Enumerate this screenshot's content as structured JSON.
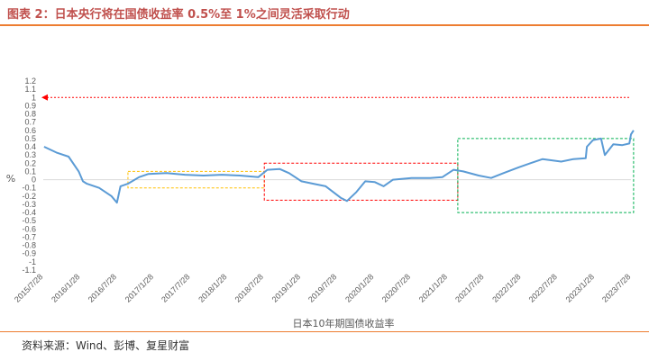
{
  "header": {
    "title": "图表 2：日本央行将在国债收益率 0.5%至 1%之间灵活采取行动"
  },
  "footer": {
    "source": "资料来源：Wind、彭博、复星财富"
  },
  "colors": {
    "accent": "#ed7d31",
    "title": "#c0504d",
    "series": "#5b9bd5",
    "box_yellow": "#ffc000",
    "box_red": "#ff0000",
    "box_green": "#00b050",
    "ref_line": "#ff0000"
  },
  "chart_data": {
    "type": "line",
    "xlabel": "日本10年期国债收益率",
    "ylabel": "%",
    "ylim": [
      -1.1,
      1.2
    ],
    "yticks": [
      1.2,
      1.1,
      1,
      0.9,
      0.8,
      0.7,
      0.6,
      0.5,
      0.4,
      0.3,
      0.2,
      0.1,
      0,
      -0.1,
      -0.2,
      -0.3,
      -0.4,
      -0.5,
      -0.6,
      -0.7,
      -0.8,
      -0.9,
      -1,
      -1.1
    ],
    "xticks": [
      "2015/7/28",
      "2016/1/28",
      "2016/7/28",
      "2017/1/28",
      "2017/7/28",
      "2018/1/28",
      "2018/7/28",
      "2019/1/28",
      "2019/7/28",
      "2020/1/28",
      "2020/7/28",
      "2021/1/28",
      "2021/7/28",
      "2022/1/28",
      "2022/7/28",
      "2023/1/28",
      "2023/7/28"
    ],
    "grid": false,
    "reference_line": {
      "y": 1.0,
      "style": "dashed",
      "arrow": "left"
    },
    "bands": [
      {
        "from": "2016/9/21",
        "to": "2018/7/31",
        "y_low": -0.1,
        "y_high": 0.1,
        "color": "yellow"
      },
      {
        "from": "2018/7/31",
        "to": "2021/3/19",
        "y_low": -0.25,
        "y_high": 0.2,
        "color": "red"
      },
      {
        "from": "2021/3/19",
        "to": "2023/8/10",
        "y_low": -0.4,
        "y_high": 0.5,
        "color": "green"
      }
    ],
    "series": [
      {
        "x": [
          "2015/8/1",
          "2015/10/1",
          "2015/12/1",
          "2016/1/20",
          "2016/2/10",
          "2016/3/1",
          "2016/5/1",
          "2016/7/1",
          "2016/7/28",
          "2016/8/15",
          "2016/9/21",
          "2016/11/15",
          "2017/1/1",
          "2017/4/1",
          "2017/7/1",
          "2017/10/1",
          "2018/1/1",
          "2018/4/1",
          "2018/7/1",
          "2018/8/15",
          "2018/10/15",
          "2018/12/1",
          "2019/2/1",
          "2019/4/1",
          "2019/6/1",
          "2019/8/15",
          "2019/9/15",
          "2019/11/1",
          "2019/12/15",
          "2020/2/1",
          "2020/3/15",
          "2020/5/1",
          "2020/8/1",
          "2020/11/1",
          "2021/1/1",
          "2021/2/26",
          "2021/4/15",
          "2021/7/1",
          "2021/9/1",
          "2021/11/1",
          "2022/1/15",
          "2022/3/15",
          "2022/5/15",
          "2022/8/15",
          "2022/10/15",
          "2022/12/15",
          "2022/12/21",
          "2023/1/20",
          "2023/3/1",
          "2023/3/20",
          "2023/5/1",
          "2023/6/15",
          "2023/7/20",
          "2023/7/28",
          "2023/8/10"
        ],
        "values": [
          0.4,
          0.33,
          0.28,
          0.1,
          -0.02,
          -0.05,
          -0.1,
          -0.2,
          -0.28,
          -0.08,
          -0.05,
          0.03,
          0.07,
          0.08,
          0.06,
          0.05,
          0.06,
          0.05,
          0.03,
          0.12,
          0.13,
          0.08,
          -0.02,
          -0.05,
          -0.08,
          -0.22,
          -0.26,
          -0.15,
          -0.02,
          -0.03,
          -0.08,
          0.0,
          0.02,
          0.02,
          0.03,
          0.12,
          0.1,
          0.05,
          0.02,
          0.08,
          0.15,
          0.2,
          0.25,
          0.22,
          0.25,
          0.26,
          0.4,
          0.48,
          0.5,
          0.3,
          0.43,
          0.42,
          0.44,
          0.55,
          0.6
        ]
      }
    ]
  }
}
